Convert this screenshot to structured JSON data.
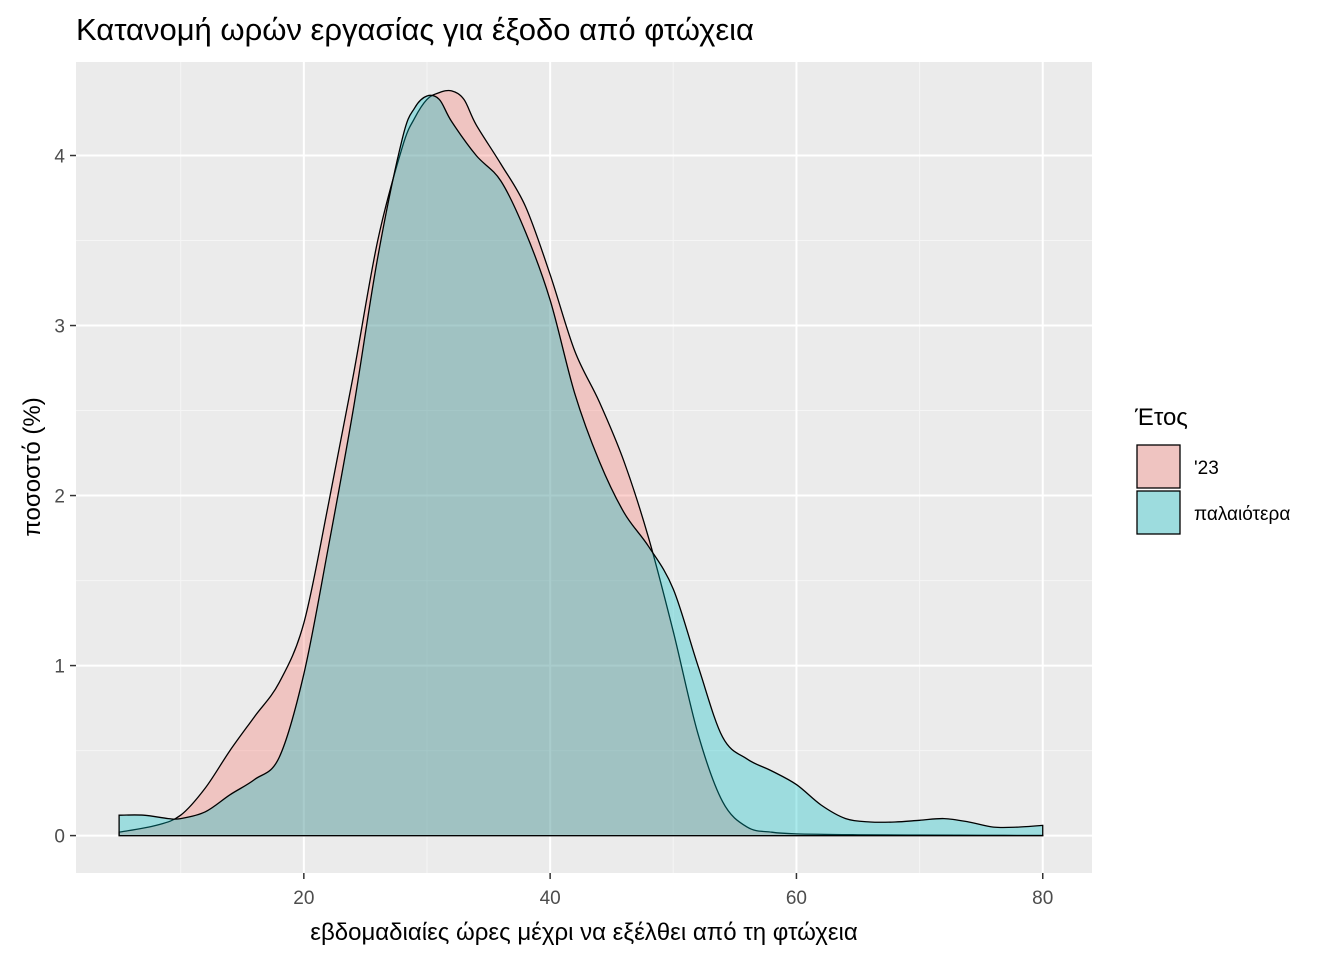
{
  "chart_data": {
    "type": "area",
    "subtype": "density",
    "title": "Κατανομή ωρών εργασίας για έξοδο από φτώχεια",
    "xlabel": "εβδομαδιαίες ώρες μέχρι να εξέλθει από τη φτώχεια",
    "ylabel": "ποσοστό (%)",
    "xlim": [
      1.5,
      84
    ],
    "ylim": [
      -0.22,
      4.55
    ],
    "x_ticks": [
      20,
      40,
      60,
      80
    ],
    "y_ticks": [
      0,
      1,
      2,
      3,
      4
    ],
    "grid": true,
    "legend": {
      "title": "Έτος",
      "position": "right"
    },
    "series": [
      {
        "name": "'23",
        "color": "#F8766D",
        "x": [
          5,
          8,
          10,
          12,
          14,
          16,
          18,
          20,
          22,
          24,
          26,
          28,
          29,
          30,
          31,
          32,
          33,
          34,
          36,
          38,
          40,
          42,
          44,
          46,
          48,
          50,
          52,
          54,
          56,
          58,
          60,
          65,
          70,
          75,
          80
        ],
        "values": [
          0.02,
          0.06,
          0.12,
          0.28,
          0.5,
          0.7,
          0.9,
          1.25,
          1.95,
          2.7,
          3.5,
          4.05,
          4.22,
          4.33,
          4.37,
          4.38,
          4.33,
          4.18,
          3.95,
          3.7,
          3.3,
          2.85,
          2.55,
          2.2,
          1.75,
          1.2,
          0.6,
          0.2,
          0.05,
          0.02,
          0.01,
          0.005,
          0.003,
          0.002,
          0.001
        ]
      },
      {
        "name": "παλαιότερα",
        "color": "#00BFC4",
        "x": [
          5,
          7,
          9,
          10,
          12,
          14,
          16,
          18,
          20,
          22,
          24,
          26,
          28,
          29,
          30,
          31,
          32,
          34,
          36,
          38,
          40,
          42,
          44,
          46,
          48,
          50,
          52,
          54,
          56,
          58,
          60,
          62,
          64,
          66,
          68,
          70,
          72,
          74,
          76,
          78,
          80
        ],
        "values": [
          0.12,
          0.12,
          0.1,
          0.1,
          0.14,
          0.24,
          0.33,
          0.46,
          0.95,
          1.7,
          2.5,
          3.4,
          4.1,
          4.28,
          4.35,
          4.33,
          4.2,
          4.0,
          3.85,
          3.55,
          3.15,
          2.6,
          2.2,
          1.9,
          1.7,
          1.45,
          1.0,
          0.58,
          0.45,
          0.38,
          0.3,
          0.18,
          0.1,
          0.08,
          0.08,
          0.09,
          0.1,
          0.08,
          0.05,
          0.05,
          0.06
        ]
      }
    ]
  }
}
